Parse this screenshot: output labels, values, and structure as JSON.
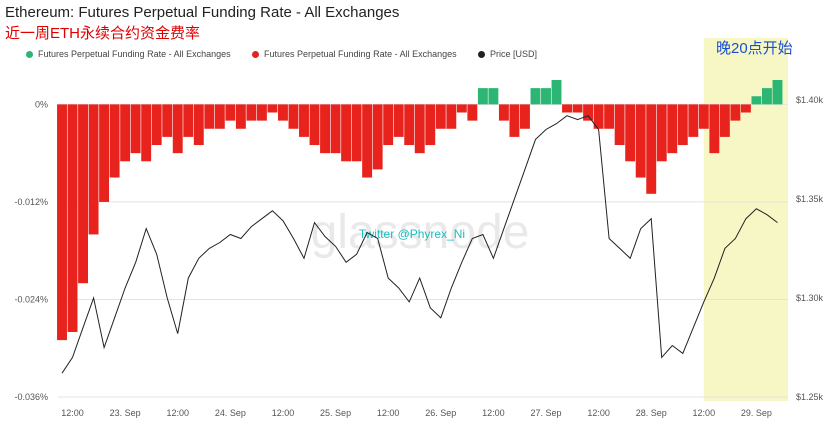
{
  "header": {
    "title": "Ethereum: Futures Perpetual Funding Rate - All Exchanges",
    "subtitle": "近一周ETH永续合约资金费率"
  },
  "legend": [
    {
      "label": "Futures Perpetual Funding Rate - All Exchanges",
      "color": "#2bb673"
    },
    {
      "label": "Futures Perpetual Funding Rate - All Exchanges",
      "color": "#e8231e"
    },
    {
      "label": "Price [USD]",
      "color": "#222222"
    }
  ],
  "annotation": {
    "text": "晚20点开始",
    "highlight_color": "#f7f7c6"
  },
  "watermark": {
    "logo": "glassnode",
    "credit": "Twitter @Phyrex_Ni"
  },
  "colors": {
    "positive": "#2bb673",
    "negative": "#e8231e",
    "price": "#222222"
  },
  "chart_data": {
    "type": "bar",
    "title": "Ethereum: Futures Perpetual Funding Rate - All Exchanges",
    "x_tick_labels": [
      "12:00",
      "23. Sep",
      "12:00",
      "24. Sep",
      "12:00",
      "25. Sep",
      "12:00",
      "26. Sep",
      "12:00",
      "27. Sep",
      "12:00",
      "28. Sep",
      "12:00",
      "29. Sep"
    ],
    "x_range_days": [
      22.4,
      29.3
    ],
    "left_axis": {
      "ticks": [
        "0%",
        "-0.012%",
        "-0.024%",
        "-0.036%"
      ],
      "ylim_percent": [
        -0.036,
        0.003
      ]
    },
    "right_axis": {
      "ticks": [
        "$1.40k",
        "$1.35k",
        "$1.30k",
        "$1.25k"
      ],
      "ylim_usd": [
        1250,
        1410
      ]
    },
    "highlight_x_range_days": [
      28.5,
      29.3
    ],
    "series": [
      {
        "name": "Futures Perpetual Funding Rate - All Exchanges",
        "unit": "%",
        "x_days": [
          22.4,
          22.5,
          22.6,
          22.7,
          22.8,
          22.9,
          23.0,
          23.1,
          23.2,
          23.3,
          23.4,
          23.5,
          23.6,
          23.7,
          23.8,
          23.9,
          24.0,
          24.1,
          24.2,
          24.3,
          24.4,
          24.5,
          24.6,
          24.7,
          24.8,
          24.9,
          25.0,
          25.1,
          25.2,
          25.3,
          25.4,
          25.5,
          25.6,
          25.7,
          25.8,
          25.9,
          26.0,
          26.1,
          26.2,
          26.3,
          26.4,
          26.5,
          26.6,
          26.7,
          26.8,
          26.9,
          27.0,
          27.1,
          27.2,
          27.3,
          27.4,
          27.5,
          27.6,
          27.7,
          27.8,
          27.9,
          28.0,
          28.1,
          28.2,
          28.3,
          28.4,
          28.5,
          28.6,
          28.7,
          28.8,
          28.9,
          29.0,
          29.1,
          29.2
        ],
        "values": [
          -0.029,
          -0.028,
          -0.022,
          -0.016,
          -0.012,
          -0.009,
          -0.007,
          -0.006,
          -0.007,
          -0.005,
          -0.004,
          -0.006,
          -0.004,
          -0.005,
          -0.003,
          -0.003,
          -0.002,
          -0.003,
          -0.002,
          -0.002,
          -0.001,
          -0.002,
          -0.003,
          -0.004,
          -0.005,
          -0.006,
          -0.006,
          -0.007,
          -0.007,
          -0.009,
          -0.008,
          -0.005,
          -0.004,
          -0.005,
          -0.006,
          -0.005,
          -0.003,
          -0.003,
          -0.001,
          -0.002,
          0.002,
          0.002,
          -0.002,
          -0.004,
          -0.003,
          0.002,
          0.002,
          0.003,
          -0.001,
          -0.001,
          -0.002,
          -0.003,
          -0.003,
          -0.005,
          -0.007,
          -0.009,
          -0.011,
          -0.007,
          -0.006,
          -0.005,
          -0.004,
          -0.003,
          -0.006,
          -0.004,
          -0.002,
          -0.001,
          0.001,
          0.002,
          0.003
        ]
      },
      {
        "name": "Price [USD]",
        "unit": "USD",
        "x_days": [
          22.4,
          22.5,
          22.6,
          22.7,
          22.8,
          22.9,
          23.0,
          23.1,
          23.2,
          23.3,
          23.4,
          23.5,
          23.6,
          23.7,
          23.8,
          23.9,
          24.0,
          24.1,
          24.2,
          24.3,
          24.4,
          24.5,
          24.6,
          24.7,
          24.8,
          24.9,
          25.0,
          25.1,
          25.2,
          25.3,
          25.4,
          25.5,
          25.6,
          25.7,
          25.8,
          25.9,
          26.0,
          26.1,
          26.2,
          26.3,
          26.4,
          26.5,
          26.6,
          26.7,
          26.8,
          26.9,
          27.0,
          27.1,
          27.2,
          27.3,
          27.4,
          27.5,
          27.6,
          27.7,
          27.8,
          27.9,
          28.0,
          28.1,
          28.2,
          28.3,
          28.4,
          28.5,
          28.6,
          28.7,
          28.8,
          28.9,
          29.0,
          29.1,
          29.2
        ],
        "values": [
          1262,
          1270,
          1285,
          1300,
          1275,
          1290,
          1305,
          1318,
          1335,
          1322,
          1300,
          1282,
          1310,
          1320,
          1325,
          1328,
          1332,
          1330,
          1336,
          1340,
          1344,
          1339,
          1330,
          1320,
          1338,
          1331,
          1326,
          1318,
          1322,
          1333,
          1330,
          1310,
          1305,
          1298,
          1310,
          1295,
          1290,
          1305,
          1318,
          1330,
          1332,
          1320,
          1335,
          1350,
          1365,
          1380,
          1385,
          1388,
          1392,
          1390,
          1392,
          1385,
          1330,
          1325,
          1320,
          1335,
          1340,
          1270,
          1276,
          1272,
          1285,
          1298,
          1310,
          1325,
          1330,
          1340,
          1345,
          1342,
          1338
        ]
      }
    ]
  }
}
